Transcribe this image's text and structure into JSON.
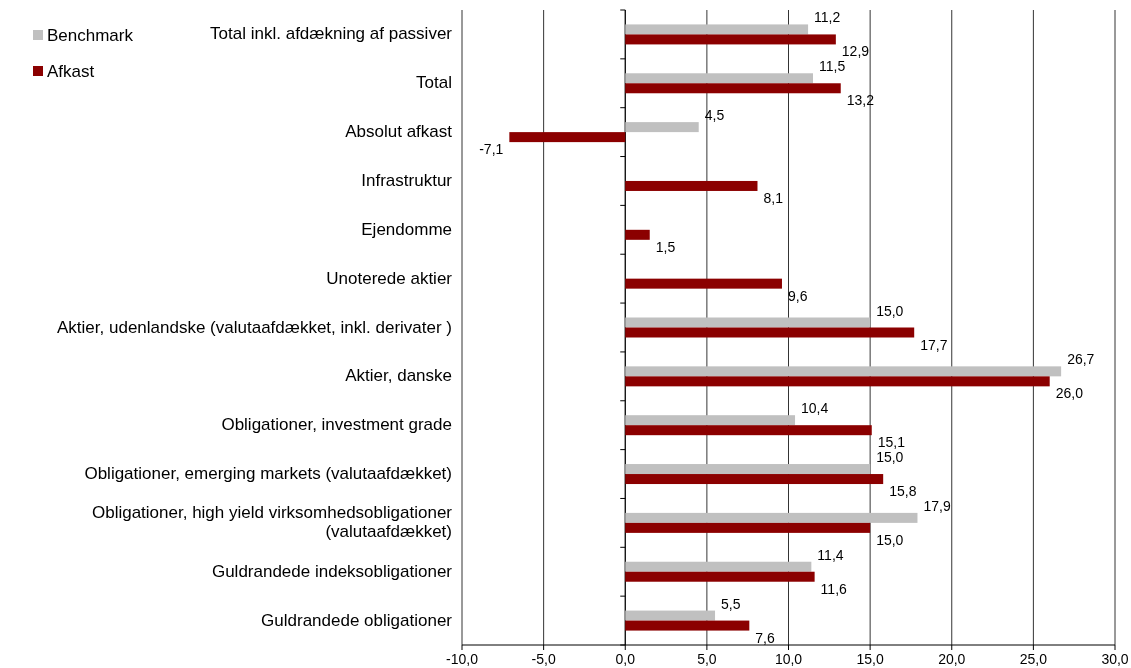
{
  "chart_data": {
    "type": "bar",
    "orientation": "horizontal",
    "categories": [
      "Total inkl. afdækning af passiver",
      "Total",
      "Absolut afkast",
      "Infrastruktur",
      "Ejendomme",
      "Unoterede aktier",
      "Aktier, udenlandske (valutaafdækket, inkl. derivater )",
      "Aktier, danske",
      "Obligationer, investment grade",
      "Obligationer, emerging markets (valutaafdækket)",
      "Obligationer, high yield virksomhedsobligationer\n(valutaafdækket)",
      "Guldrandede indeksobligationer",
      "Guldrandede obligationer"
    ],
    "series": [
      {
        "name": "Benchmark",
        "color": "#c0c0c0",
        "values": [
          11.2,
          11.5,
          4.5,
          null,
          null,
          null,
          15.0,
          26.7,
          10.4,
          15.0,
          17.9,
          11.4,
          5.5
        ],
        "value_labels": [
          "11,2",
          "11,5",
          "4,5",
          null,
          null,
          null,
          "15,0",
          "26,7",
          "10,4",
          "15,0",
          "17,9",
          "11,4",
          "5,5"
        ]
      },
      {
        "name": "Afkast",
        "color": "#8b0000",
        "values": [
          12.9,
          13.2,
          -7.1,
          8.1,
          1.5,
          9.6,
          17.7,
          26.0,
          15.1,
          15.8,
          15.0,
          11.6,
          7.6
        ],
        "value_labels": [
          "12,9",
          "13,2",
          "-7,1",
          "8,1",
          "1,5",
          "9,6",
          "17,7",
          "26,0",
          "15,1",
          "15,8",
          "15,0",
          "11,6",
          "7,6"
        ]
      }
    ],
    "xlim": [
      -10,
      30
    ],
    "xticks": [
      {
        "value": -10,
        "label": "-10,0"
      },
      {
        "value": -5,
        "label": "-5,0"
      },
      {
        "value": 0,
        "label": "0,0"
      },
      {
        "value": 5,
        "label": "5,0"
      },
      {
        "value": 10,
        "label": "10,0"
      },
      {
        "value": 15,
        "label": "15,0"
      },
      {
        "value": 20,
        "label": "20,0"
      },
      {
        "value": 25,
        "label": "25,0"
      },
      {
        "value": 30,
        "label": "30,0"
      }
    ],
    "grid": "x",
    "legend": "top left"
  }
}
